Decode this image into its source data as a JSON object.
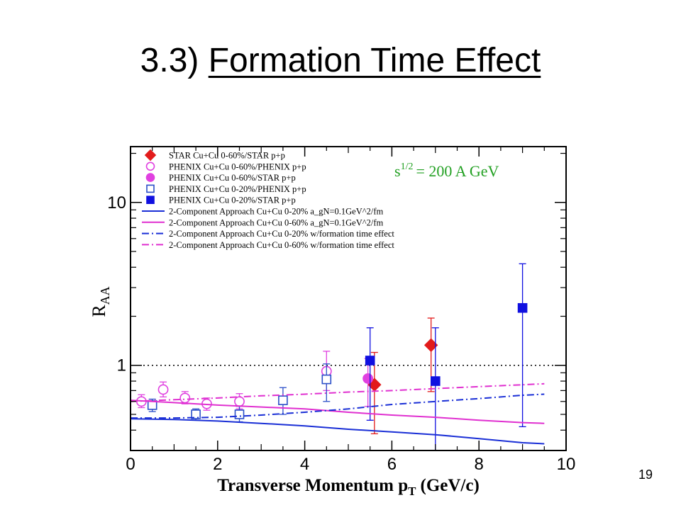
{
  "slide": {
    "title_prefix": "3.3)",
    "title_main": "Formation Time Effect",
    "page_number": "19"
  },
  "chart_data": {
    "type": "scatter",
    "xlabel": "Transverse Momentum p",
    "xlabel_sub": "T",
    "xlabel_unit": "(GeV/c)",
    "ylabel": "R",
    "ylabel_sub": "AA",
    "annotation": {
      "base": "s",
      "exp": "1/2",
      "rest": "= 200 A GeV",
      "color": "#22a022"
    },
    "xlim": [
      0,
      10
    ],
    "ylim": [
      0.3,
      22
    ],
    "y_scale": "log",
    "x_ticks": [
      "0",
      "2",
      "4",
      "6",
      "8",
      "10"
    ],
    "y_ticks": [
      {
        "value": 1,
        "label": "1"
      },
      {
        "value": 10,
        "label": "10"
      }
    ],
    "reference_line": {
      "y": 1,
      "style": "dotted"
    },
    "series": [
      {
        "name": "STAR     Cu+Cu 0-60%/STAR p+p",
        "marker": "diamond",
        "fill": "filled",
        "color": "#e21b1b",
        "points": [
          {
            "x": 5.6,
            "y": 0.76,
            "lo": 0.38,
            "hi": 1.2
          },
          {
            "x": 6.9,
            "y": 1.33,
            "lo": 0.69,
            "hi": 1.95
          }
        ]
      },
      {
        "name": "PHENIX Cu+Cu 0-60%/PHENIX p+p",
        "marker": "circle",
        "fill": "open",
        "color": "#e040e0",
        "points": [
          {
            "x": 0.25,
            "y": 0.6,
            "lo": 0.55,
            "hi": 0.66
          },
          {
            "x": 0.75,
            "y": 0.71,
            "lo": 0.64,
            "hi": 0.79
          },
          {
            "x": 1.25,
            "y": 0.63,
            "lo": 0.58,
            "hi": 0.69
          },
          {
            "x": 1.75,
            "y": 0.58,
            "lo": 0.53,
            "hi": 0.63
          },
          {
            "x": 2.5,
            "y": 0.6,
            "lo": 0.54,
            "hi": 0.67
          },
          {
            "x": 4.5,
            "y": 0.92,
            "lo": 0.7,
            "hi": 1.22
          }
        ]
      },
      {
        "name": "PHENIX Cu+Cu 0-60%/STAR p+p",
        "marker": "circle",
        "fill": "filled",
        "color": "#e040e0",
        "points": [
          {
            "x": 5.45,
            "y": 0.83,
            "lo": 0.56,
            "hi": 1.1
          }
        ]
      },
      {
        "name": "PHENIX Cu+Cu 0-20%/PHENIX p+p",
        "marker": "square",
        "fill": "open",
        "color": "#2b4fc8",
        "points": [
          {
            "x": 0.5,
            "y": 0.57,
            "lo": 0.52,
            "hi": 0.62
          },
          {
            "x": 1.5,
            "y": 0.5,
            "lo": 0.46,
            "hi": 0.54
          },
          {
            "x": 2.5,
            "y": 0.5,
            "lo": 0.45,
            "hi": 0.56
          },
          {
            "x": 3.5,
            "y": 0.61,
            "lo": 0.5,
            "hi": 0.73
          },
          {
            "x": 4.5,
            "y": 0.82,
            "lo": 0.6,
            "hi": 1.02
          }
        ]
      },
      {
        "name": "PHENIX Cu+Cu 0-20%/STAR p+p",
        "marker": "square",
        "fill": "filled",
        "color": "#1010e0",
        "points": [
          {
            "x": 5.5,
            "y": 1.07,
            "lo": 0.46,
            "hi": 1.7
          },
          {
            "x": 7.0,
            "y": 0.8,
            "lo": 0.2,
            "hi": 1.7
          },
          {
            "x": 9.0,
            "y": 2.25,
            "lo": 0.42,
            "hi": 4.2
          }
        ]
      },
      {
        "name": "2-Component Approach Cu+Cu 0-20% a_gN=0.1GeV^2/fm",
        "line": "solid",
        "color": "#1a2fd6",
        "x": [
          0,
          1,
          2,
          3,
          4,
          5,
          6,
          7,
          8,
          9,
          9.5
        ],
        "y": [
          0.47,
          0.465,
          0.455,
          0.44,
          0.425,
          0.405,
          0.39,
          0.375,
          0.355,
          0.335,
          0.33
        ]
      },
      {
        "name": "2-Component Approach Cu+Cu 0-60% a_gN=0.1GeV^2/fm",
        "line": "solid",
        "color": "#e030d0",
        "x": [
          0,
          1,
          2,
          3,
          4,
          5,
          6,
          7,
          8,
          9,
          9.5
        ],
        "y": [
          0.61,
          0.59,
          0.57,
          0.555,
          0.54,
          0.515,
          0.495,
          0.48,
          0.46,
          0.445,
          0.44
        ]
      },
      {
        "name": "2-Component Approach Cu+Cu 0-20% w/formation time effect",
        "line": "dashdot",
        "color": "#1a2fd6",
        "x": [
          0,
          1,
          2,
          3,
          4,
          5,
          6,
          7,
          8,
          9,
          9.5
        ],
        "y": [
          0.475,
          0.475,
          0.48,
          0.495,
          0.515,
          0.54,
          0.575,
          0.6,
          0.625,
          0.655,
          0.665
        ]
      },
      {
        "name": "2-Component Approach Cu+Cu 0-60% w/formation time effect",
        "line": "dashdot",
        "color": "#e030d0",
        "x": [
          0,
          1,
          2,
          3,
          4,
          5,
          6,
          7,
          8,
          9,
          9.5
        ],
        "y": [
          0.6,
          0.615,
          0.63,
          0.65,
          0.665,
          0.685,
          0.7,
          0.72,
          0.74,
          0.76,
          0.77
        ]
      }
    ],
    "legend_placement": "top-left"
  }
}
